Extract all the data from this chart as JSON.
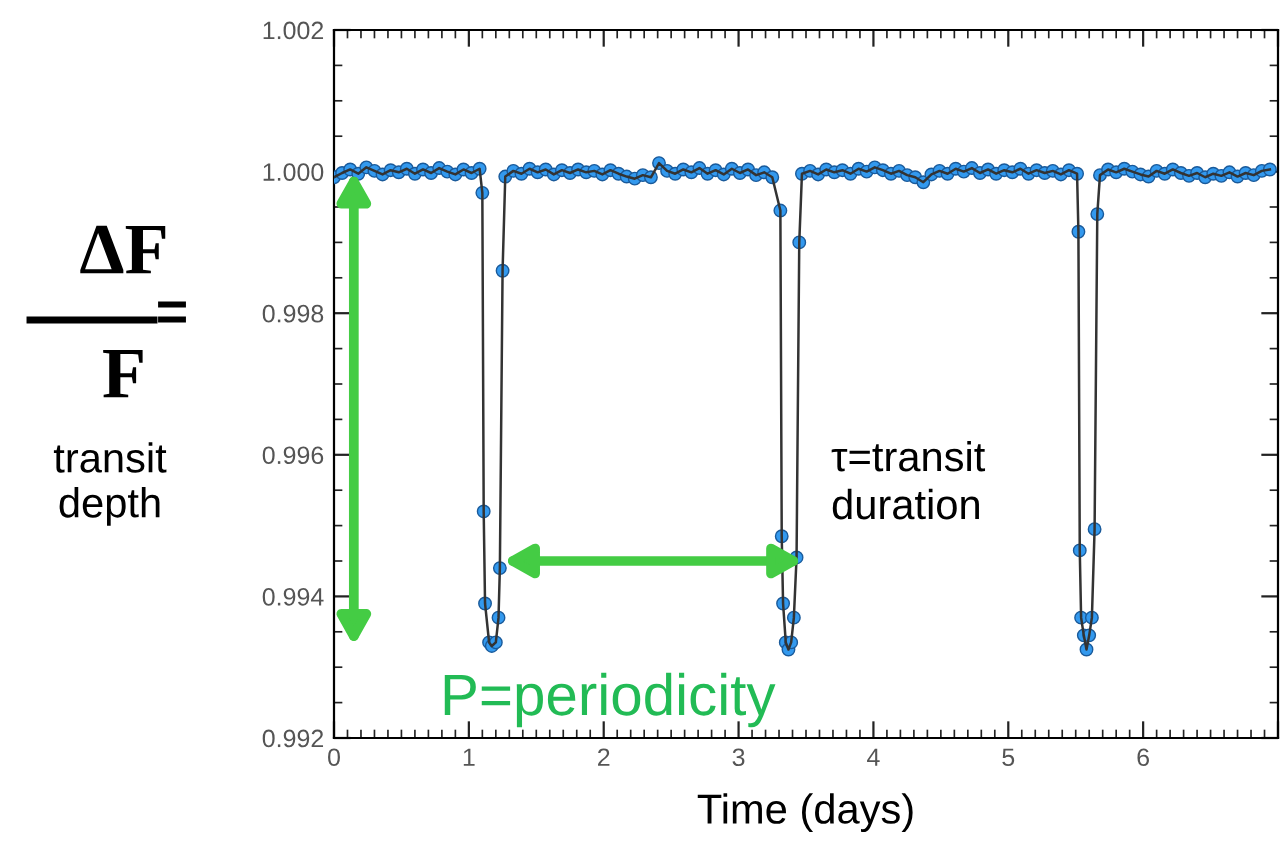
{
  "chart_data": {
    "type": "line",
    "xlabel": "Time (days)",
    "annotations": [
      "ΔF",
      "F",
      "=",
      "transit\ndepth",
      {
        "text": "τ=transit\nduration",
        "x": 3.48,
        "y": 0.9945
      },
      "P=periodicity"
    ],
    "x": [
      0,
      0.06,
      0.12,
      0.18,
      0.24,
      0.3,
      0.36,
      0.42,
      0.48,
      0.54,
      0.6,
      0.66,
      0.72,
      0.78,
      0.84,
      0.9,
      0.96,
      1.02,
      1.08,
      1.1,
      1.11,
      1.12,
      1.15,
      1.17,
      1.2,
      1.22,
      1.23,
      1.25,
      1.27,
      1.33,
      1.39,
      1.45,
      1.51,
      1.57,
      1.63,
      1.69,
      1.75,
      1.81,
      1.87,
      1.93,
      1.99,
      2.05,
      2.11,
      2.17,
      2.23,
      2.29,
      2.35,
      2.41,
      2.47,
      2.53,
      2.59,
      2.65,
      2.71,
      2.77,
      2.83,
      2.89,
      2.95,
      3.01,
      3.07,
      3.13,
      3.19,
      3.25,
      3.31,
      3.32,
      3.33,
      3.35,
      3.37,
      3.39,
      3.41,
      3.43,
      3.45,
      3.47,
      3.53,
      3.59,
      3.65,
      3.71,
      3.77,
      3.83,
      3.89,
      3.95,
      4.01,
      4.07,
      4.13,
      4.19,
      4.25,
      4.31,
      4.37,
      4.43,
      4.49,
      4.55,
      4.61,
      4.67,
      4.73,
      4.79,
      4.85,
      4.91,
      4.97,
      5.03,
      5.09,
      5.15,
      5.21,
      5.27,
      5.33,
      5.39,
      5.45,
      5.51,
      5.52,
      5.53,
      5.54,
      5.56,
      5.58,
      5.6,
      5.62,
      5.64,
      5.66,
      5.68,
      5.74,
      5.8,
      5.86,
      5.92,
      5.98,
      6.04,
      6.1,
      6.16,
      6.22,
      6.28,
      6.34,
      6.4,
      6.46,
      6.52,
      6.58,
      6.64,
      6.7,
      6.76,
      6.82,
      6.88,
      6.94
    ],
    "series": [
      {
        "color": "#3399ee",
        "values": [
          0.99992,
          0.99998,
          1.00003,
          0.99997,
          1.00006,
          1.00001,
          0.99996,
          1.00002,
          0.99999,
          1.00004,
          0.99997,
          1.00003,
          0.99998,
          1.00005,
          1.0,
          0.99996,
          1.00003,
          0.99998,
          1.00004,
          0.9997,
          0.9952,
          0.9939,
          0.99335,
          0.9933,
          0.99335,
          0.9937,
          0.9944,
          0.9986,
          0.99993,
          1.00001,
          0.99997,
          1.00004,
          0.99999,
          1.00003,
          0.99996,
          1.00002,
          0.99998,
          1.00003,
          0.99999,
          1.00001,
          0.99996,
          1.00002,
          0.99997,
          0.99993,
          0.9999,
          0.99995,
          0.99992,
          1.00012,
          1.00001,
          0.99997,
          1.00003,
          0.99999,
          1.00005,
          0.99997,
          1.00002,
          0.99996,
          1.00004,
          0.99998,
          1.00003,
          0.99995,
          0.99999,
          0.99992,
          0.99945,
          0.99485,
          0.9939,
          0.99335,
          0.99325,
          0.99335,
          0.9937,
          0.99455,
          0.999,
          0.99997,
          1.00001,
          0.99996,
          1.00003,
          0.99999,
          1.00002,
          0.99997,
          1.00004,
          1.0,
          1.00006,
          1.00002,
          0.99997,
          1.00001,
          0.99995,
          0.99992,
          0.99985,
          0.99996,
          1.00001,
          0.99997,
          1.00004,
          1.0,
          1.00005,
          0.99998,
          1.00003,
          0.99997,
          1.00002,
          0.99999,
          1.00004,
          0.99997,
          1.00002,
          0.99998,
          1.00001,
          0.99996,
          1.00002,
          0.99997,
          0.99915,
          0.99465,
          0.9937,
          0.99345,
          0.99325,
          0.99345,
          0.9937,
          0.99495,
          0.9994,
          0.99995,
          1.00003,
          0.99999,
          1.00004,
          1.0,
          0.99996,
          0.99993,
          1.00001,
          0.99997,
          1.00003,
          0.99998,
          0.99994,
          0.99998,
          0.99992,
          0.99997,
          0.99994,
          0.99999,
          0.99993,
          0.99998,
          0.99995,
          1.00001,
          1.00003
        ]
      }
    ],
    "marker": "circle",
    "line_style": "solid",
    "grid": false,
    "legend": false,
    "xlim": [
      0,
      7
    ],
    "xticks": [
      0,
      1,
      2,
      3,
      4,
      5,
      6,
      {
        "value": 7,
        "label": null
      }
    ],
    "ylim": [
      0.992,
      1.002
    ],
    "yticks": [
      {
        "value": 0.992,
        "label": "0.992"
      },
      {
        "value": 0.994,
        "label": "0.994"
      },
      {
        "value": 0.996,
        "label": "0.996"
      },
      {
        "value": 0.998,
        "label": "0.998"
      },
      {
        "value": 1.0,
        "label": "1.000"
      },
      {
        "value": 1.002,
        "label": "1.002"
      }
    ]
  }
}
